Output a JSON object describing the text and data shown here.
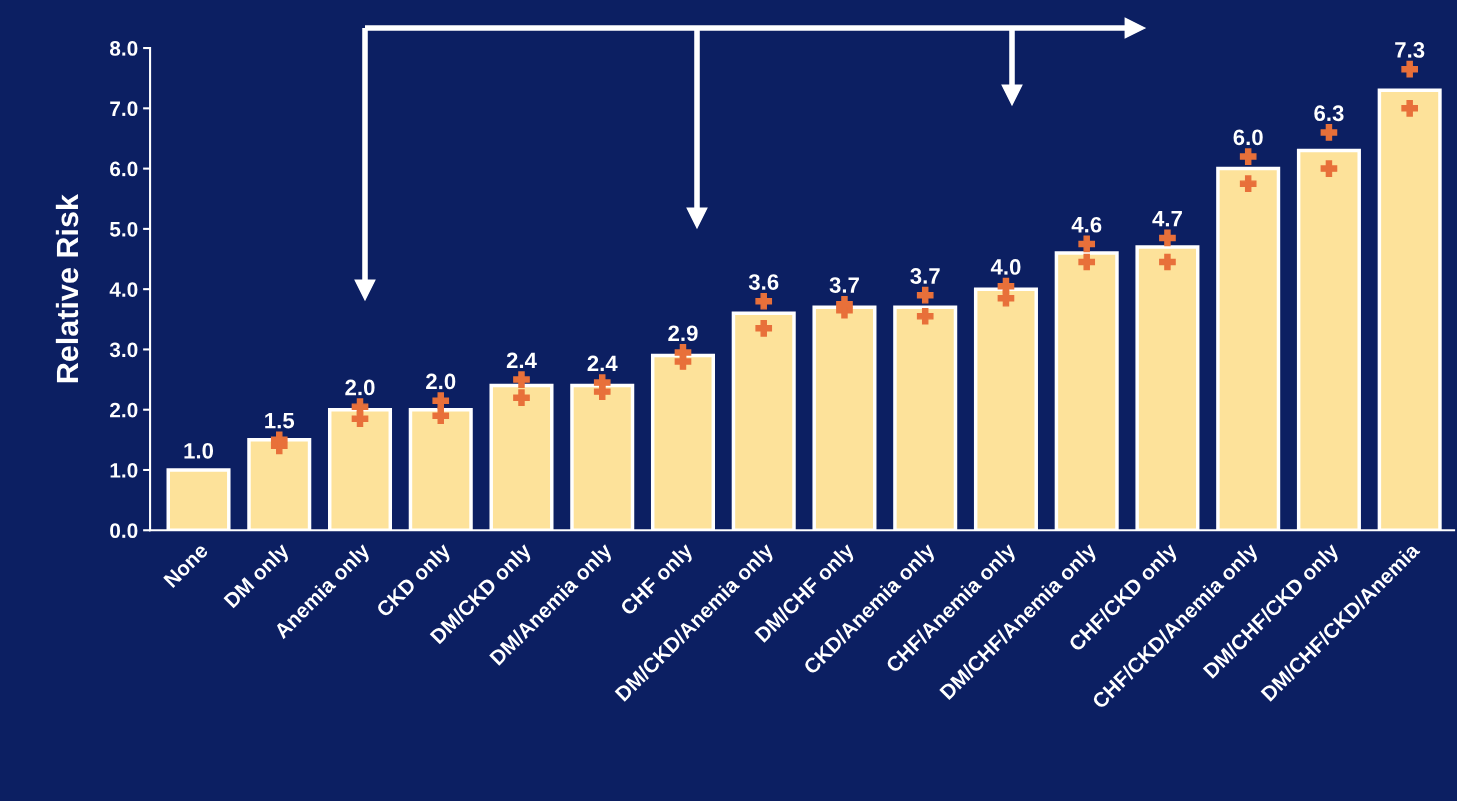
{
  "chart_data": {
    "type": "bar",
    "ylabel": "Relative Risk",
    "categories": [
      "None",
      "DM only",
      "Anemia only",
      "CKD only",
      "DM/CKD only",
      "DM/Anemia only",
      "CHF only",
      "DM/CKD/Anemia only",
      "DM/CHF only",
      "CKD/Anemia only",
      "CHF/Anemia only",
      "DM/CHF/Anemia only",
      "CHF/CKD only",
      "CHF/CKD/Anemia only",
      "DM/CHF/CKD only",
      "DM/CHF/CKD/Anemia"
    ],
    "series": [
      {
        "color": "#fde29a",
        "values": [
          1.0,
          1.5,
          2.0,
          2.0,
          2.4,
          2.4,
          2.9,
          3.6,
          3.7,
          3.7,
          4.0,
          4.6,
          4.7,
          6.0,
          6.3,
          7.3
        ],
        "value_labels": [
          "1.0",
          "1.5",
          "2.0",
          "2.0",
          "2.4",
          "2.4",
          "2.9",
          "3.6",
          "3.7",
          "3.7",
          "4.0",
          "4.6",
          "4.7",
          "6.0",
          "6.3",
          "7.3"
        ]
      },
      {
        "type": "scatter",
        "color": "#e8703a",
        "marker": "cross",
        "values": [
          null,
          1.4,
          1.85,
          1.9,
          2.2,
          2.3,
          2.8,
          3.35,
          3.65,
          3.55,
          3.85,
          4.45,
          4.45,
          5.75,
          6.0,
          7.0
        ]
      },
      {
        "type": "scatter",
        "color": "#e8703a",
        "marker": "cross",
        "values": [
          null,
          1.5,
          2.05,
          2.15,
          2.5,
          2.45,
          2.95,
          3.8,
          3.75,
          3.9,
          4.05,
          4.75,
          4.85,
          6.2,
          6.6,
          7.65
        ]
      }
    ],
    "ylim": [
      0,
      8
    ],
    "yticks": [
      {
        "value": 0,
        "label": "0.0"
      },
      {
        "value": 1,
        "label": "1.0"
      },
      {
        "value": 2,
        "label": "2.0"
      },
      {
        "value": 3,
        "label": "3.0"
      },
      {
        "value": 4,
        "label": "4.0"
      },
      {
        "value": 5,
        "label": "5.0"
      },
      {
        "value": 6,
        "label": "6.0"
      },
      {
        "value": 7,
        "label": "7.0"
      },
      {
        "value": 8,
        "label": "8.0"
      }
    ],
    "grid": false,
    "legend": false
  }
}
